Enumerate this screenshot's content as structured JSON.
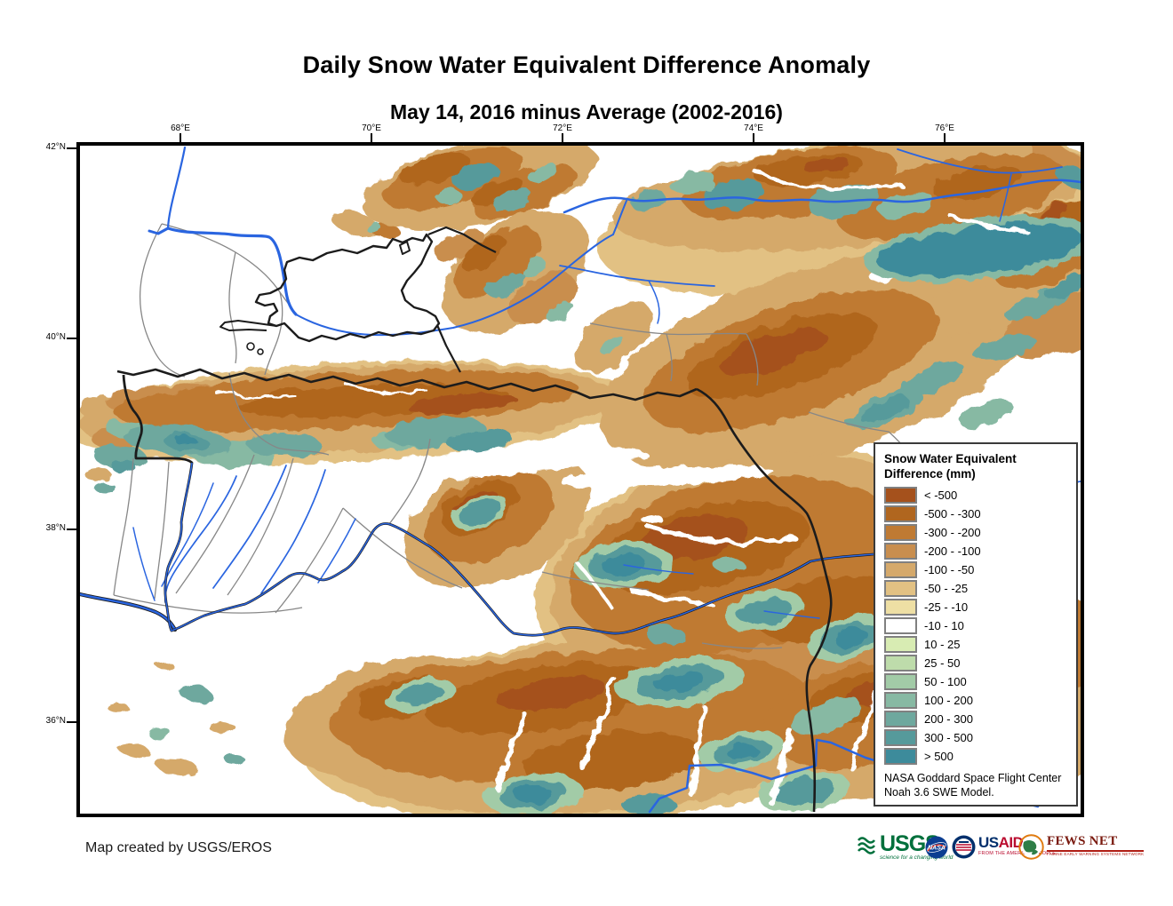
{
  "title": "Daily Snow Water Equivalent Difference Anomaly",
  "subtitle": "May 14, 2016 minus Average (2002-2016)",
  "map": {
    "x_ticks": [
      "68°E",
      "70°E",
      "72°E",
      "74°E",
      "76°E"
    ],
    "y_ticks": [
      "42°N",
      "40°N",
      "38°N",
      "36°N"
    ],
    "colors": {
      "river": "#2a65e0",
      "border": "#1c1c1c",
      "admin_border": "#878787",
      "background": "#ffffff"
    }
  },
  "legend": {
    "title_line1": "Snow Water Equivalent",
    "title_line2": "Difference (mm)",
    "classes": [
      {
        "label": "< -500",
        "color": "#a5511c"
      },
      {
        "label": "-500 - -300",
        "color": "#b0661f"
      },
      {
        "label": "-300 - -200",
        "color": "#bf7a33"
      },
      {
        "label": "-200 - -100",
        "color": "#c98e4e"
      },
      {
        "label": "-100 - -50",
        "color": "#d5a96b"
      },
      {
        "label": "-50 - -25",
        "color": "#e2c183"
      },
      {
        "label": "-25 - -10",
        "color": "#eedfa4"
      },
      {
        "label": "-10 - 10",
        "color": "#ffffff"
      },
      {
        "label": "10 - 25",
        "color": "#d8ecb3"
      },
      {
        "label": "25 - 50",
        "color": "#bedcab"
      },
      {
        "label": "50 - 100",
        "color": "#a2cba7"
      },
      {
        "label": "100 - 200",
        "color": "#87b9a3"
      },
      {
        "label": "200 - 300",
        "color": "#6ea89e"
      },
      {
        "label": "300 - 500",
        "color": "#569a9b"
      },
      {
        "label": "> 500",
        "color": "#3d8b9b"
      }
    ],
    "note_line1": "NASA Goddard Space Flight Center",
    "note_line2": "Noah 3.6 SWE Model."
  },
  "footer": {
    "credit": "Map created by USGS/EROS",
    "logos": {
      "usgs": {
        "name": "USGS",
        "tagline": "science for a changing world",
        "color": "#00703c"
      },
      "nasa": {
        "name": "NASA",
        "color": "#0b3d91"
      },
      "usaid": {
        "name_us": "US",
        "name_aid": "AID",
        "tagline": "FROM THE AMERICAN PEOPLE",
        "blue": "#002f6c",
        "red": "#ba0c2f"
      },
      "fews_net": {
        "name": "FEWS NET",
        "tagline": "FAMINE EARLY WARNING SYSTEMS NETWORK",
        "color": "#7a1a0f"
      }
    }
  }
}
